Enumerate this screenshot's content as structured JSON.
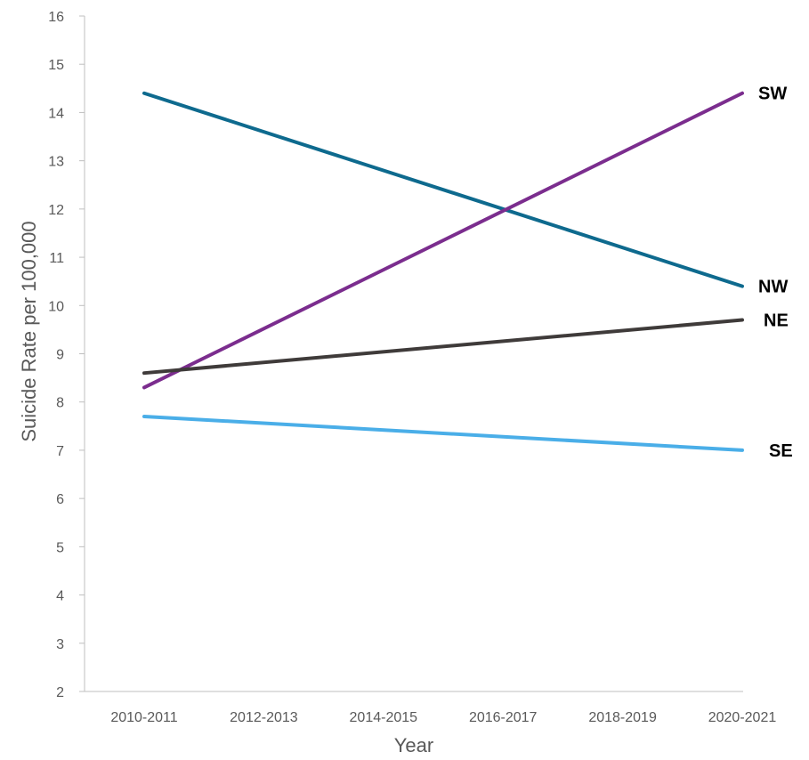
{
  "chart_data": {
    "type": "line",
    "title": "",
    "xlabel": "Year",
    "ylabel": "Suicide Rate per 100,000",
    "categories": [
      "2010-2011",
      "2012-2013",
      "2014-2015",
      "2016-2017",
      "2018-2019",
      "2020-2021"
    ],
    "ylim": [
      2,
      16
    ],
    "yticks": [
      2,
      3,
      4,
      5,
      6,
      7,
      8,
      9,
      10,
      11,
      12,
      13,
      14,
      15,
      16
    ],
    "grid": false,
    "legend": "end-of-line labels",
    "series": [
      {
        "name": "NW",
        "color": "#0e6a8e",
        "x": [
          "2010-2011",
          "2020-2021"
        ],
        "values": [
          14.4,
          10.4
        ]
      },
      {
        "name": "SW",
        "color": "#7b2d8e",
        "x": [
          "2010-2011",
          "2020-2021"
        ],
        "values": [
          8.3,
          14.4
        ]
      },
      {
        "name": "NE",
        "color": "#3f3b3a",
        "x": [
          "2010-2011",
          "2020-2021"
        ],
        "values": [
          8.6,
          9.7
        ]
      },
      {
        "name": "SE",
        "color": "#4aaee8",
        "x": [
          "2010-2011",
          "2020-2021"
        ],
        "values": [
          7.7,
          7.0
        ]
      }
    ]
  }
}
